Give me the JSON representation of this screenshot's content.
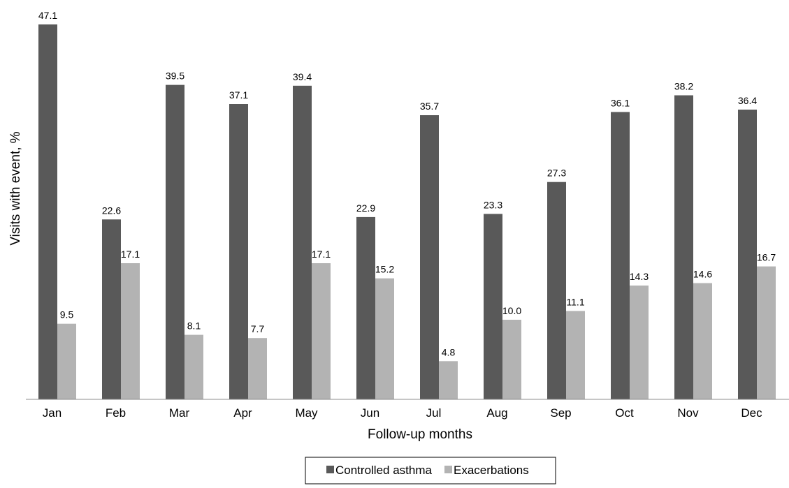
{
  "chart_data": {
    "type": "bar",
    "title": "",
    "xlabel": "Follow-up months",
    "ylabel": "Visits with event, %",
    "categories": [
      "Jan",
      "Feb",
      "Mar",
      "Apr",
      "May",
      "Jun",
      "Jul",
      "Aug",
      "Sep",
      "Oct",
      "Nov",
      "Dec"
    ],
    "series": [
      {
        "name": "Controlled asthma",
        "color": "#595959",
        "values": [
          47.1,
          22.6,
          39.5,
          37.1,
          39.4,
          22.9,
          35.7,
          23.3,
          27.3,
          36.1,
          38.2,
          36.4
        ],
        "labels": [
          "47.1",
          "22.6",
          "39.5",
          "37.1",
          "39.4",
          "22.9",
          "35.7",
          "23.3",
          "27.3",
          "36.1",
          "38.2",
          "36.4"
        ]
      },
      {
        "name": "Exacerbations",
        "color": "#b3b3b3",
        "values": [
          9.5,
          17.1,
          8.1,
          7.7,
          17.1,
          15.2,
          4.8,
          10.0,
          11.1,
          14.3,
          14.6,
          16.7
        ],
        "labels": [
          "9.5",
          "17.1",
          "8.1",
          "7.7",
          "17.1",
          "15.2",
          "4.8",
          "10.0",
          "11.1",
          "14.3",
          "14.6",
          "16.7"
        ]
      }
    ],
    "ylim": [
      0,
      47.1
    ],
    "grid": false,
    "legend_position": "bottom-center"
  }
}
